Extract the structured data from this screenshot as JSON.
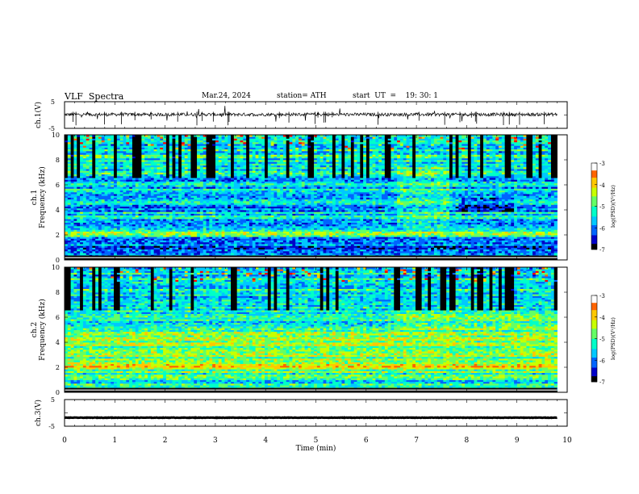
{
  "header": {
    "title": "VLF  Spectra",
    "date": "Mar.24, 2024",
    "station": "station= ATH",
    "start_ut": "start  UT  =    19: 30: 1"
  },
  "chart_data": [
    {
      "type": "line",
      "name": "ch1-waveform",
      "ylabel": "ch.1(V)",
      "ylim": [
        -5,
        5
      ],
      "yticks": [
        "5",
        "-5"
      ],
      "xlim": [
        0,
        10
      ],
      "x_data_end": 9.8,
      "mean_value": 0.2,
      "noise_amplitude": 1.2
    },
    {
      "type": "heatmap",
      "name": "ch1-spectrogram",
      "ylabel": "ch.1\nFrequency (kHz)",
      "ylim": [
        0,
        10
      ],
      "yticks": [
        "0",
        "2",
        "4",
        "6",
        "8",
        "10"
      ],
      "xlim": [
        0,
        10
      ],
      "x_data_end": 9.8,
      "colorbar": {
        "label": "log(PSD)(V²/Hz)",
        "range": [
          -7,
          -3
        ],
        "ticks": [
          "-3",
          "-4",
          "-5",
          "-6",
          "-7"
        ]
      }
    },
    {
      "type": "heatmap",
      "name": "ch2-spectrogram",
      "ylabel": "ch.2\nFrequency (kHz)",
      "ylim": [
        0,
        10
      ],
      "yticks": [
        "0",
        "2",
        "4",
        "6",
        "8",
        "10"
      ],
      "xlim": [
        0,
        10
      ],
      "x_data_end": 9.8,
      "colorbar": {
        "label": "log(PSD)(V²/Hz)",
        "range": [
          -7,
          -3
        ],
        "ticks": [
          "-3",
          "-4",
          "-5",
          "-6",
          "-7"
        ]
      }
    },
    {
      "type": "line",
      "name": "ch3-waveform",
      "ylabel": "ch.3(V)",
      "ylim": [
        -5,
        5
      ],
      "yticks": [
        "5",
        "-5"
      ],
      "xlim": [
        0,
        10
      ],
      "x_data_end": 9.8,
      "mean_value": -1.8,
      "xlabel": "Time  (min)",
      "xticks": [
        "0",
        "1",
        "2",
        "3",
        "4",
        "5",
        "6",
        "7",
        "8",
        "9",
        "10"
      ]
    }
  ],
  "colors": {
    "axis": "#000000",
    "trace": "#000000",
    "colormap": [
      "#000000",
      "#0000c8",
      "#0064ff",
      "#00c8ff",
      "#00ffc8",
      "#64ff64",
      "#c8ff00",
      "#ffc800",
      "#ff6400",
      "#ff0000",
      "#ffffff"
    ]
  }
}
